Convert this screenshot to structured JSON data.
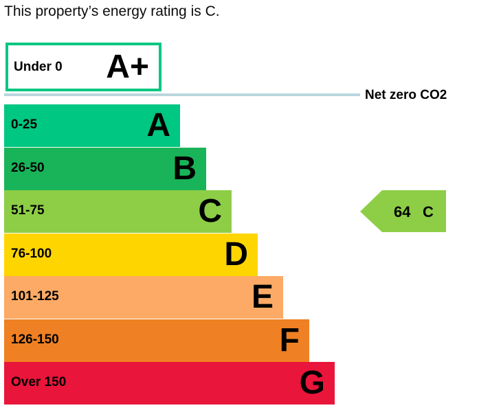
{
  "heading": "This property’s energy rating is C.",
  "colors": {
    "aplus_border": "#00c781",
    "net_zero_line": "#bad6df"
  },
  "chart_data": {
    "type": "bar",
    "aplus": {
      "range": "Under 0",
      "letter": "A+"
    },
    "net_zero_label": "Net zero CO2",
    "bands": [
      {
        "range": "0-25",
        "letter": "A",
        "color": "#00c781"
      },
      {
        "range": "26-50",
        "letter": "B",
        "color": "#19b459"
      },
      {
        "range": "51-75",
        "letter": "C",
        "color": "#8dce46"
      },
      {
        "range": "76-100",
        "letter": "D",
        "color": "#ffd500"
      },
      {
        "range": "101-125",
        "letter": "E",
        "color": "#fcaa65"
      },
      {
        "range": "126-150",
        "letter": "F",
        "color": "#ef8023"
      },
      {
        "range": "Over 150",
        "letter": "G",
        "color": "#e9153b"
      }
    ],
    "current_rating": {
      "score": "64",
      "band": "C",
      "color": "#8dce46"
    }
  }
}
